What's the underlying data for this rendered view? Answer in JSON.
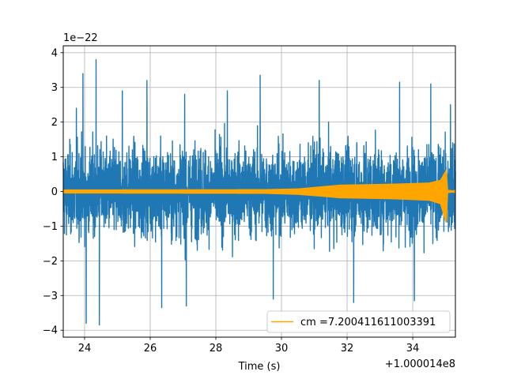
{
  "chart_data": {
    "type": "line",
    "xlabel": "Time (s)",
    "x_offset_label": "+1.000014e8",
    "y_scale_label": "1e−22",
    "xlim": [
      23.35,
      35.3
    ],
    "ylim": [
      -4.2,
      4.2
    ],
    "x_ticks": [
      24,
      26,
      28,
      30,
      32,
      34
    ],
    "x_tick_labels": [
      "24",
      "26",
      "28",
      "30",
      "32",
      "34"
    ],
    "y_ticks": [
      -4,
      -3,
      -2,
      -1,
      0,
      1,
      2,
      3,
      4
    ],
    "y_tick_labels": [
      "−4",
      "−3",
      "−2",
      "−1",
      "0",
      "1",
      "2",
      "3",
      "4"
    ],
    "grid": true,
    "legend_position": "lower-right",
    "series": [
      {
        "color": "#1f77b4",
        "description": "whitened strain noise",
        "typical_amplitude": 1.6,
        "peaks": [
          {
            "x": 23.75,
            "y": 2.4
          },
          {
            "x": 23.95,
            "y": 3.4
          },
          {
            "x": 24.05,
            "y": -3.8
          },
          {
            "x": 24.35,
            "y": 3.8
          },
          {
            "x": 24.45,
            "y": -3.85
          },
          {
            "x": 25.15,
            "y": 2.9
          },
          {
            "x": 25.9,
            "y": 3.2
          },
          {
            "x": 26.35,
            "y": -3.35
          },
          {
            "x": 27.05,
            "y": 2.8
          },
          {
            "x": 27.1,
            "y": -3.3
          },
          {
            "x": 28.35,
            "y": 2.9
          },
          {
            "x": 29.35,
            "y": 3.35
          },
          {
            "x": 29.75,
            "y": -3.1
          },
          {
            "x": 31.15,
            "y": 3.2
          },
          {
            "x": 32.2,
            "y": -3.2
          },
          {
            "x": 33.6,
            "y": 3.15
          },
          {
            "x": 34.05,
            "y": -3.15
          },
          {
            "x": 34.55,
            "y": 3.1
          },
          {
            "x": 35.15,
            "y": 2.5
          }
        ]
      },
      {
        "name": "cm =7.200411611003391",
        "color": "#ffa500",
        "description": "template waveform envelope",
        "envelope": [
          {
            "x": 23.35,
            "upper": 0.04,
            "lower": -0.04
          },
          {
            "x": 29.5,
            "upper": 0.05,
            "lower": -0.05
          },
          {
            "x": 30.5,
            "upper": 0.07,
            "lower": -0.08
          },
          {
            "x": 31.2,
            "upper": 0.13,
            "lower": -0.13
          },
          {
            "x": 31.8,
            "upper": 0.18,
            "lower": -0.18
          },
          {
            "x": 32.5,
            "upper": 0.19,
            "lower": -0.19
          },
          {
            "x": 33.5,
            "upper": 0.21,
            "lower": -0.21
          },
          {
            "x": 34.5,
            "upper": 0.24,
            "lower": -0.25
          },
          {
            "x": 34.85,
            "upper": 0.32,
            "lower": -0.35
          },
          {
            "x": 35.02,
            "upper": 0.6,
            "lower": -0.9
          },
          {
            "x": 35.06,
            "upper": 0.03,
            "lower": -0.03
          },
          {
            "x": 35.3,
            "upper": 0.01,
            "lower": -0.01
          }
        ]
      }
    ]
  }
}
